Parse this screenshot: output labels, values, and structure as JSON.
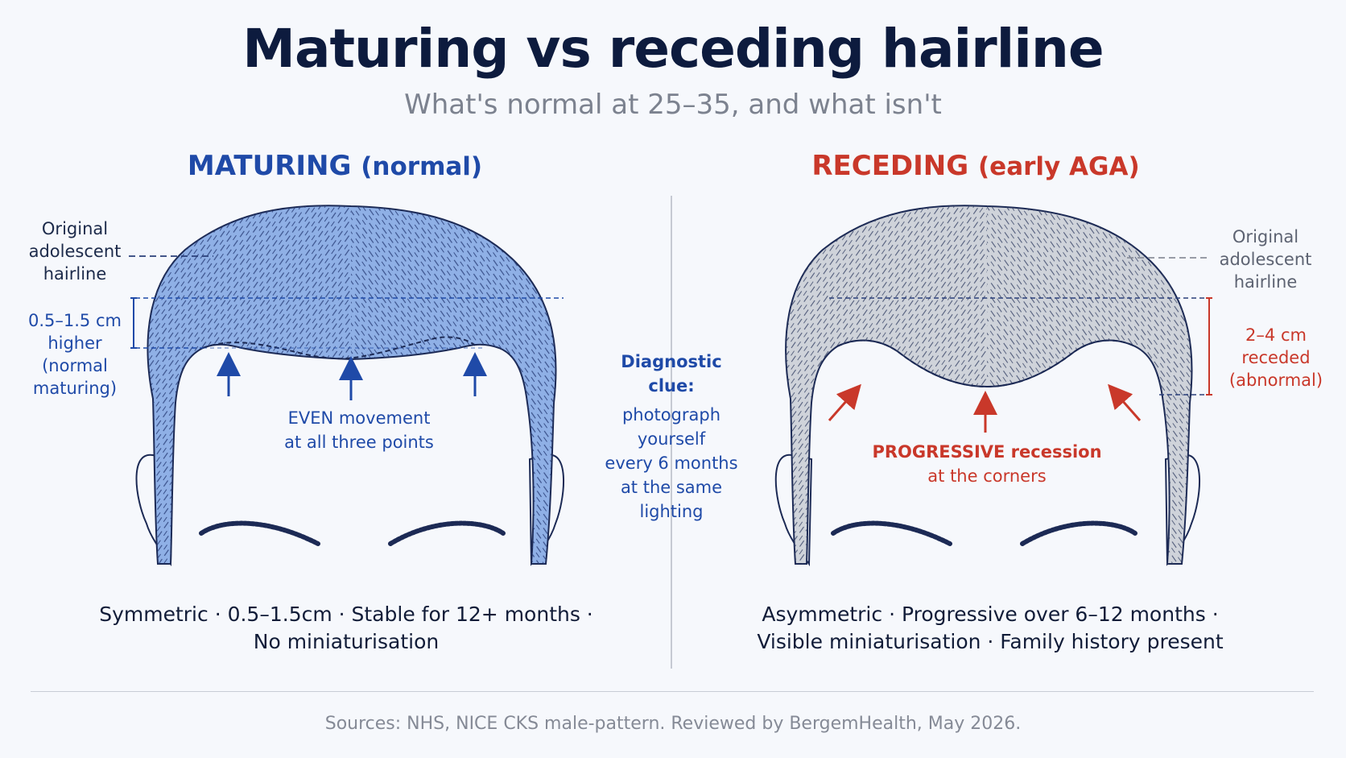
{
  "title": "Maturing vs receding hairline",
  "subtitle": "What's normal at 25–35, and what isn't",
  "left": {
    "heading_main": "MATURING",
    "heading_sub": "(normal)",
    "original_label": [
      "Original",
      "adolescent",
      "hairline"
    ],
    "measure_label": [
      "0.5–1.5 cm",
      "higher",
      "(normal",
      "maturing)"
    ],
    "arrow_caption": [
      "EVEN movement",
      "at all three points"
    ],
    "summary": [
      "Symmetric · 0.5–1.5cm · Stable for 12+ months ·",
      "No miniaturisation"
    ]
  },
  "center": {
    "clue_title": [
      "Diagnostic",
      "clue:"
    ],
    "clue_body": [
      "photograph",
      "yourself",
      "every 6 months",
      "at the same",
      "lighting"
    ]
  },
  "right": {
    "heading_main": "RECEDING",
    "heading_sub": "(early AGA)",
    "original_label": [
      "Original",
      "adolescent",
      "hairline"
    ],
    "measure_label": [
      "2–4 cm",
      "receded",
      "(abnormal)"
    ],
    "arrow_caption": [
      "PROGRESSIVE recession",
      "at the corners"
    ],
    "summary": [
      "Asymmetric · Progressive over 6–12 months ·",
      "Visible miniaturisation · Family history present"
    ]
  },
  "footer": {
    "source": "Sources: NHS, NICE CKS male-pattern. Reviewed by BergemHealth, May 2026."
  },
  "colors": {
    "navy": "#0d1b3e",
    "blue": "#1f4aa8",
    "red": "#c9382a",
    "hair_blue": "#8fb0e6",
    "hair_grey": "#cfd3da",
    "grey_text": "#7c828f"
  }
}
